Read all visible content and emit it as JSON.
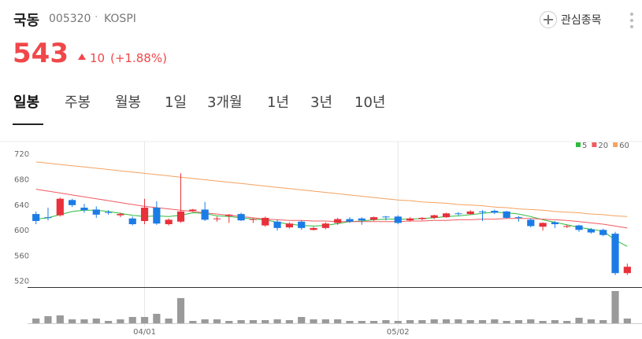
{
  "header": {
    "title": "국동",
    "code": "005320",
    "market": "KOSPI",
    "watch_button": "관심종목",
    "price": 543,
    "change": 10,
    "change_percent": "(+1.88%)"
  },
  "tabs": [
    "일봉",
    "주봉",
    "월봉",
    "1일",
    "3개월",
    "1년",
    "3년",
    "10년"
  ],
  "chart_data": {
    "type": "candlestick",
    "categories": [
      null,
      null,
      null,
      null,
      null,
      null,
      null,
      null,
      null,
      "04/01",
      null,
      null,
      null,
      null,
      null,
      null,
      null,
      null,
      null,
      null,
      null,
      null,
      null,
      null,
      null,
      null,
      null,
      null,
      null,
      null,
      "05/02",
      null,
      null,
      null,
      null,
      null,
      null,
      null,
      null,
      null,
      null,
      null,
      null,
      null,
      null,
      null,
      null,
      null,
      null,
      null
    ],
    "open": [
      626,
      621,
      624,
      648,
      636,
      633,
      629,
      624,
      619,
      615,
      636,
      610,
      614,
      631,
      633,
      618,
      623,
      626,
      617,
      608,
      614,
      605,
      614,
      601,
      604,
      612,
      618,
      619,
      617,
      622,
      622,
      616,
      618,
      620,
      621,
      627,
      626,
      630,
      631,
      630,
      621,
      617,
      606,
      613,
      606,
      608,
      602,
      601,
      595,
      533
    ],
    "high": [
      630,
      636,
      652,
      650,
      642,
      638,
      632,
      628,
      622,
      650,
      646,
      619,
      690,
      634,
      645,
      622,
      626,
      628,
      620,
      622,
      617,
      613,
      616,
      606,
      613,
      620,
      621,
      621,
      622,
      623,
      624,
      621,
      621,
      625,
      628,
      629,
      632,
      632,
      633,
      631,
      623,
      619,
      613,
      615,
      609,
      609,
      604,
      603,
      598,
      548
    ],
    "low": [
      610,
      616,
      622,
      637,
      628,
      620,
      625,
      621,
      608,
      610,
      609,
      608,
      612,
      629,
      615,
      614,
      612,
      615,
      612,
      606,
      600,
      603,
      601,
      600,
      602,
      609,
      612,
      609,
      615,
      616,
      610,
      614,
      616,
      618,
      620,
      624,
      625,
      615,
      626,
      619,
      614,
      605,
      600,
      604,
      604,
      598,
      595,
      591,
      530,
      530
    ],
    "close": [
      615,
      620,
      650,
      640,
      632,
      625,
      628,
      626,
      610,
      636,
      611,
      617,
      630,
      633,
      617,
      619,
      625,
      616,
      618,
      620,
      604,
      611,
      604,
      604,
      611,
      618,
      614,
      616,
      621,
      621,
      612,
      619,
      620,
      624,
      627,
      626,
      630,
      629,
      628,
      620,
      620,
      607,
      612,
      610,
      607,
      601,
      597,
      593,
      533,
      543
    ],
    "up_color": "#e8313b",
    "down_color": "#1c7ce6",
    "ylim": [
      511,
      740
    ],
    "yticks": [
      520,
      560,
      600,
      640,
      680,
      720
    ],
    "moving_averages": [
      {
        "name": "5",
        "color": "#2dbb3c",
        "values": [
          618,
          620,
          625,
          630,
          632,
          632,
          630,
          627,
          624,
          622,
          623,
          622,
          624,
          628,
          627,
          623,
          622,
          620,
          618,
          617,
          613,
          610,
          608,
          607,
          608,
          611,
          614,
          615,
          617,
          618,
          618,
          618,
          619,
          620,
          622,
          623,
          625,
          627,
          629,
          628,
          626,
          622,
          617,
          613,
          609,
          605,
          602,
          599,
          585,
          575
        ]
      },
      {
        "name": "20",
        "color": "#f05a5f",
        "values": [
          665,
          662,
          659,
          656,
          653,
          650,
          647,
          644,
          641,
          638,
          636,
          634,
          632,
          630,
          628,
          626,
          624,
          622,
          620,
          618,
          617,
          616,
          616,
          615,
          615,
          614,
          614,
          614,
          614,
          614,
          614,
          615,
          615,
          616,
          616,
          617,
          617,
          618,
          618,
          619,
          619,
          619,
          618,
          617,
          616,
          614,
          612,
          610,
          607,
          604
        ]
      },
      {
        "name": "60",
        "color": "#f3a25f",
        "values": [
          708,
          706,
          704,
          702,
          700,
          698,
          696,
          694,
          692,
          690,
          688,
          686,
          684,
          682,
          680,
          678,
          676,
          674,
          672,
          670,
          668,
          666,
          664,
          662,
          660,
          658,
          656,
          654,
          652,
          650,
          648,
          647,
          645,
          644,
          643,
          641,
          640,
          639,
          637,
          636,
          634,
          633,
          632,
          630,
          629,
          628,
          626,
          625,
          623,
          622
        ]
      }
    ],
    "volume": {
      "color": "#9a9a9a",
      "lim": [
        0,
        45
      ],
      "values": [
        6,
        9,
        10,
        5,
        5,
        6,
        3,
        5,
        8,
        8,
        12,
        6,
        32,
        3,
        5,
        5,
        3,
        4,
        4,
        4,
        5,
        4,
        8,
        5,
        5,
        5,
        3,
        3,
        3,
        4,
        3,
        4,
        4,
        5,
        5,
        5,
        4,
        4,
        5,
        3,
        4,
        5,
        3,
        4,
        3,
        7,
        5,
        4,
        41,
        6
      ]
    }
  }
}
